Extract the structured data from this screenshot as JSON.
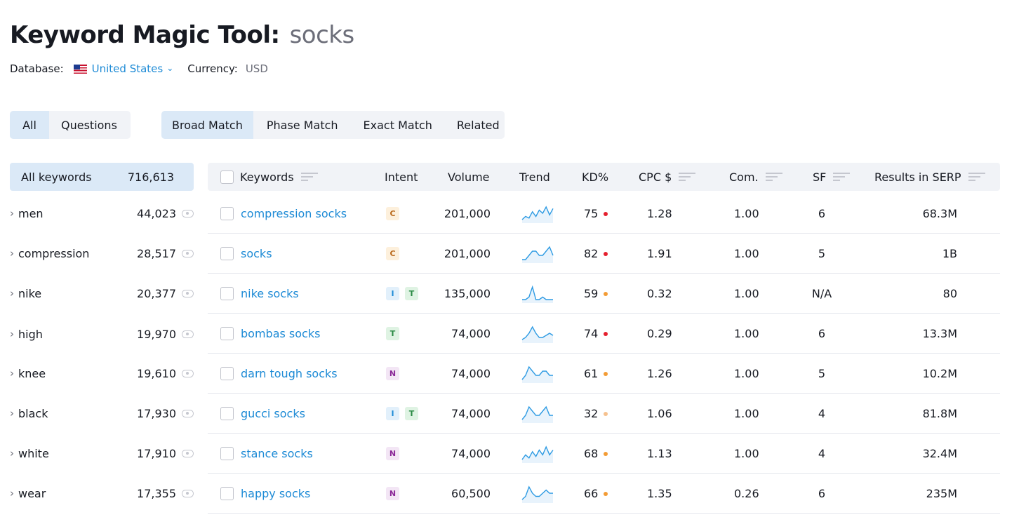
{
  "header": {
    "title": "Keyword Magic Tool:",
    "query": "socks",
    "database_label": "Database:",
    "database_value": "United States",
    "currency_label": "Currency:",
    "currency_value": "USD"
  },
  "scope_tabs": [
    {
      "label": "All",
      "active": true
    },
    {
      "label": "Questions",
      "active": false
    }
  ],
  "match_tabs": [
    {
      "label": "Broad Match",
      "active": true
    },
    {
      "label": "Phase Match",
      "active": false
    },
    {
      "label": "Exact Match",
      "active": false
    },
    {
      "label": "Related",
      "active": false
    }
  ],
  "sidebar": {
    "header_label": "All  keywords",
    "header_count": "716,613",
    "groups": [
      {
        "label": "men",
        "count": "44,023"
      },
      {
        "label": "compression",
        "count": "28,517"
      },
      {
        "label": "nike",
        "count": "20,377"
      },
      {
        "label": "high",
        "count": "19,970"
      },
      {
        "label": "knee",
        "count": "19,610"
      },
      {
        "label": "black",
        "count": "17,930"
      },
      {
        "label": "white",
        "count": "17,910"
      },
      {
        "label": "wear",
        "count": "17,355"
      }
    ]
  },
  "table": {
    "columns": {
      "keywords": "Keywords",
      "intent": "Intent",
      "volume": "Volume",
      "trend": "Trend",
      "kd": "KD%",
      "cpc": "CPC $",
      "com": "Com.",
      "sf": "SF",
      "results": "Results in SERP"
    },
    "rows": [
      {
        "keyword": "compression socks",
        "intent": [
          "C"
        ],
        "volume": "201,000",
        "trend": [
          3,
          5,
          4,
          8,
          5,
          9,
          7,
          11,
          6,
          10
        ],
        "kd": "75",
        "kd_color": "#e5202e",
        "cpc": "1.28",
        "com": "1.00",
        "sf": "6",
        "results": "68.3M"
      },
      {
        "keyword": "socks",
        "intent": [
          "C"
        ],
        "volume": "201,000",
        "trend": [
          5,
          5,
          6,
          7,
          7,
          6,
          6,
          7,
          8,
          6
        ],
        "kd": "82",
        "kd_color": "#e5202e",
        "cpc": "1.91",
        "com": "1.00",
        "sf": "5",
        "results": "1B"
      },
      {
        "keyword": "nike socks",
        "intent": [
          "I",
          "T"
        ],
        "volume": "135,000",
        "trend": [
          4,
          4,
          5,
          9,
          4,
          4,
          5,
          4,
          4,
          4
        ],
        "kd": "59",
        "kd_color": "#f39c35",
        "cpc": "0.32",
        "com": "1.00",
        "sf": "N/A",
        "results": "80"
      },
      {
        "keyword": "bombas socks",
        "intent": [
          "T"
        ],
        "volume": "74,000",
        "trend": [
          4,
          5,
          7,
          10,
          7,
          5,
          5,
          6,
          7,
          6
        ],
        "kd": "74",
        "kd_color": "#e5202e",
        "cpc": "0.29",
        "com": "1.00",
        "sf": "6",
        "results": "13.3M"
      },
      {
        "keyword": "darn tough socks",
        "intent": [
          "N"
        ],
        "volume": "74,000",
        "trend": [
          4,
          5,
          7,
          6,
          5,
          5,
          6,
          6,
          5,
          5
        ],
        "kd": "61",
        "kd_color": "#f39c35",
        "cpc": "1.26",
        "com": "1.00",
        "sf": "5",
        "results": "10.2M"
      },
      {
        "keyword": "gucci socks",
        "intent": [
          "I",
          "T"
        ],
        "volume": "74,000",
        "trend": [
          3,
          4,
          6,
          5,
          4,
          4,
          5,
          6,
          4,
          4
        ],
        "kd": "32",
        "kd_color": "#f6c18e",
        "cpc": "1.06",
        "com": "1.00",
        "sf": "4",
        "results": "81.8M"
      },
      {
        "keyword": "stance socks",
        "intent": [
          "N"
        ],
        "volume": "74,000",
        "trend": [
          3,
          6,
          4,
          8,
          5,
          9,
          6,
          11,
          6,
          9
        ],
        "kd": "68",
        "kd_color": "#f39c35",
        "cpc": "1.13",
        "com": "1.00",
        "sf": "4",
        "results": "32.4M"
      },
      {
        "keyword": "happy socks",
        "intent": [
          "N"
        ],
        "volume": "60,500",
        "trend": [
          4,
          5,
          8,
          6,
          5,
          5,
          6,
          7,
          6,
          6
        ],
        "kd": "66",
        "kd_color": "#f39c35",
        "cpc": "1.35",
        "com": "0.26",
        "sf": "6",
        "results": "235M"
      }
    ]
  }
}
